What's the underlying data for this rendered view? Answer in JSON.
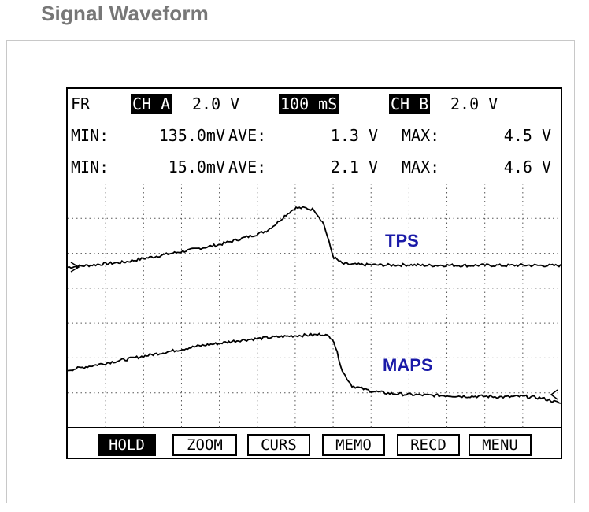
{
  "page_title": "Signal Waveform",
  "header": {
    "mode": "FR",
    "ch_a_label": "CH A",
    "ch_a_scale": "2.0 V",
    "timebase": "100 mS",
    "ch_b_label": "CH B",
    "ch_b_scale": "2.0 V",
    "row_a": {
      "min_label": "MIN:",
      "min": "135.0mV",
      "ave_label": "AVE:",
      "ave": "1.3 V",
      "max_label": "MAX:",
      "max": "4.5 V"
    },
    "row_b": {
      "min_label": "MIN:",
      "min": "15.0mV",
      "ave_label": "AVE:",
      "ave": "2.1 V",
      "max_label": "MAX:",
      "max": "4.6 V"
    }
  },
  "softkeys": [
    {
      "label": "HOLD",
      "active": true
    },
    {
      "label": "ZOOM",
      "active": false
    },
    {
      "label": "CURS",
      "active": false
    },
    {
      "label": "MEMO",
      "active": false
    },
    {
      "label": "RECD",
      "active": false
    },
    {
      "label": "MENU",
      "active": false
    }
  ],
  "colors": {
    "trace": "#000000",
    "grid": "#555555",
    "trace_label": "#1a1aa8",
    "title": "#777777"
  },
  "chart_data": {
    "type": "line",
    "x_divisions": 13,
    "y_divisions": 7,
    "grid": true,
    "x": [
      0,
      0.5,
      1,
      1.5,
      2,
      2.5,
      3,
      3.5,
      4,
      4.5,
      5,
      5.25,
      5.5,
      5.75,
      6,
      6.25,
      6.5,
      6.75,
      7,
      7.25,
      7.5,
      8,
      8.5,
      9,
      9.5,
      10,
      10.5,
      11,
      11.5,
      12,
      12.5,
      13
    ],
    "series": [
      {
        "name": "TPS",
        "y_div": [
          4.6,
          4.65,
          4.7,
          4.75,
          4.85,
          4.95,
          5.05,
          5.15,
          5.25,
          5.4,
          5.55,
          5.65,
          5.85,
          6.1,
          6.3,
          6.3,
          6.25,
          5.85,
          4.9,
          4.7,
          4.68,
          4.67,
          4.66,
          4.67,
          4.65,
          4.66,
          4.65,
          4.66,
          4.65,
          4.66,
          4.65,
          4.65
        ]
      },
      {
        "name": "MAPS",
        "y_div": [
          1.65,
          1.75,
          1.85,
          1.95,
          2.05,
          2.15,
          2.25,
          2.35,
          2.42,
          2.5,
          2.55,
          2.58,
          2.6,
          2.62,
          2.64,
          2.65,
          2.66,
          2.68,
          2.55,
          1.6,
          1.2,
          1.05,
          0.98,
          0.95,
          0.93,
          0.92,
          0.9,
          0.9,
          0.88,
          0.9,
          0.85,
          0.7
        ]
      }
    ]
  }
}
